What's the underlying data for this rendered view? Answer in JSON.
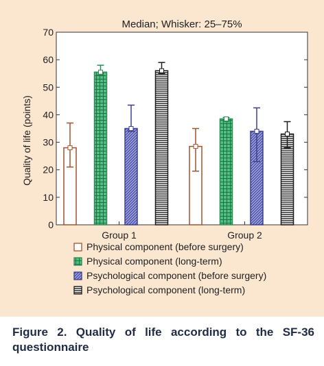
{
  "chart_data": {
    "type": "bar",
    "title": "Median; Whisker: 25–75%",
    "xlabel": "",
    "ylabel": "Quality of life (points)",
    "ylim": [
      0,
      70
    ],
    "yticks": [
      0,
      10,
      20,
      30,
      40,
      50,
      60,
      70
    ],
    "categories": [
      "Group 1",
      "Group 2"
    ],
    "grid": false,
    "legend_position": "bottom",
    "series": [
      {
        "name": "Physical component (before surgery)",
        "color": "#a0522d",
        "fill": "#ffffff",
        "pattern": "none",
        "values": [
          28,
          28.5
        ],
        "q1": [
          21,
          19.5
        ],
        "q3": [
          37,
          35
        ]
      },
      {
        "name": "Physical component (long-term)",
        "color": "#2e8b57",
        "fill": "#3cb371",
        "pattern": "grid",
        "values": [
          55.5,
          38.5
        ],
        "q1": [
          54.5,
          37.5
        ],
        "q3": [
          58,
          39
        ]
      },
      {
        "name": "Psychological component (before surgery)",
        "color": "#3a3f8f",
        "fill": "#8a8fd0",
        "pattern": "diagonal",
        "values": [
          35,
          34
        ],
        "q1": [
          34,
          23
        ],
        "q3": [
          43.5,
          42.5
        ]
      },
      {
        "name": "Psychological component (long-term)",
        "color": "#1a1a1a",
        "fill": "#ffffff",
        "pattern": "horizontal",
        "values": [
          56,
          33
        ],
        "q1": [
          55,
          28
        ],
        "q3": [
          59,
          37.5
        ]
      }
    ]
  },
  "caption": "Figure 2. Quality of life according to the SF-36 questionnaire"
}
